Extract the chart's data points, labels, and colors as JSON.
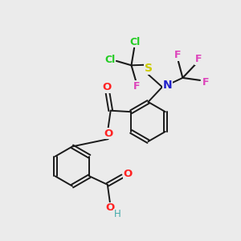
{
  "bg_color": "#ebebeb",
  "bond_color": "#1a1a1a",
  "atom_colors": {
    "Cl": "#22cc22",
    "F": "#dd44bb",
    "S": "#cccc00",
    "N": "#2222cc",
    "O": "#ff2222",
    "H": "#44aaaa",
    "C": "#1a1a1a"
  },
  "figsize": [
    3.0,
    3.0
  ],
  "dpi": 100
}
